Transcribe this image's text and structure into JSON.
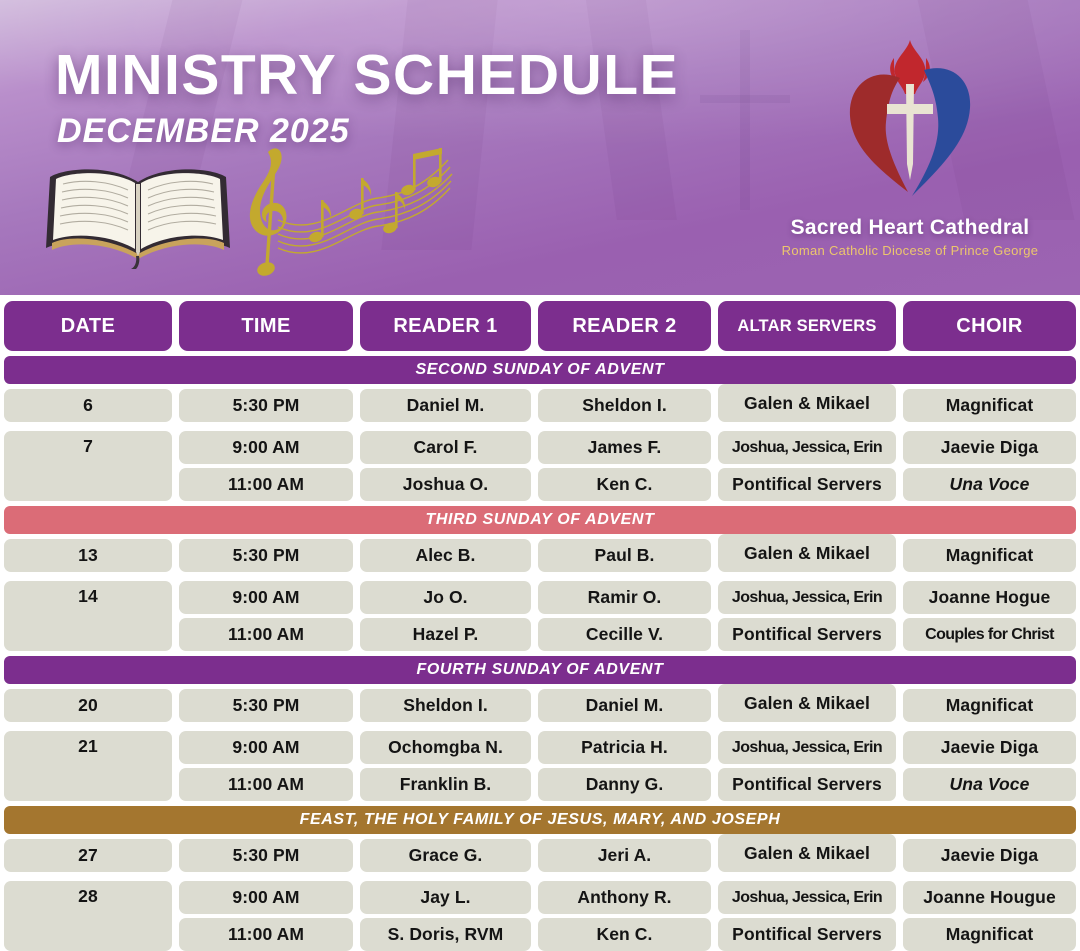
{
  "hero": {
    "title": "MINISTRY SCHEDULE",
    "subtitle": "DECEMBER 2025",
    "org_name": "Sacred Heart Cathedral",
    "org_tagline": "Roman Catholic Diocese of Prince George",
    "decorations": [
      "open-bible-icon",
      "music-notes-icon",
      "sacred-heart-logo"
    ]
  },
  "colors": {
    "header_purple": "#7c2e8e",
    "advent_purple": "#7c2e8e",
    "third_sunday_pink": "#db6c77",
    "feast_brown": "#a4762f",
    "cell_gray": "#dcdcd1",
    "gold": "#e5c25b"
  },
  "table": {
    "columns": [
      {
        "label": "DATE",
        "small": false
      },
      {
        "label": "TIME",
        "small": false
      },
      {
        "label": "READER 1",
        "small": false
      },
      {
        "label": "READER 2",
        "small": false
      },
      {
        "label": "ALTAR SERVERS",
        "small": true
      },
      {
        "label": "CHOIR",
        "small": false
      }
    ],
    "sections": [
      {
        "title": "SECOND SUNDAY OF ADVENT",
        "theme": "purple",
        "rows": [
          {
            "date": "6",
            "rowspan": 1,
            "time": "5:30 PM",
            "reader1": "Daniel M.",
            "reader2": "Sheldon I.",
            "servers": "Galen & Mikael",
            "choir": "Magnificat",
            "raised": true
          },
          {
            "date": "7",
            "rowspan": 2,
            "time": "9:00 AM",
            "reader1": "Carol F.",
            "reader2": "James F.",
            "servers": "Joshua, Jessica, Erin",
            "choir": "Jaevie Diga",
            "tight": true
          },
          {
            "date": null,
            "time": "11:00 AM",
            "reader1": "Joshua O.",
            "reader2": "Ken C.",
            "servers": "Pontifical Servers",
            "choir": "Una Voce",
            "choir_italic": true
          }
        ]
      },
      {
        "title": "THIRD SUNDAY OF ADVENT",
        "theme": "pink",
        "rows": [
          {
            "date": "13",
            "rowspan": 1,
            "time": "5:30 PM",
            "reader1": "Alec B.",
            "reader2": "Paul B.",
            "servers": "Galen & Mikael",
            "choir": "Magnificat",
            "raised": true
          },
          {
            "date": "14",
            "rowspan": 2,
            "time": "9:00 AM",
            "reader1": "Jo O.",
            "reader2": "Ramir O.",
            "servers": "Joshua, Jessica, Erin",
            "choir": "Joanne Hogue",
            "tight": true
          },
          {
            "date": null,
            "time": "11:00 AM",
            "reader1": "Hazel P.",
            "reader2": "Cecille V.",
            "servers": "Pontifical Servers",
            "choir": "Couples for Christ",
            "choir_tight": true
          }
        ]
      },
      {
        "title": "FOURTH SUNDAY OF ADVENT",
        "theme": "purple",
        "rows": [
          {
            "date": "20",
            "rowspan": 1,
            "time": "5:30 PM",
            "reader1": "Sheldon I.",
            "reader2": "Daniel M.",
            "servers": "Galen & Mikael",
            "choir": "Magnificat",
            "raised": true
          },
          {
            "date": "21",
            "rowspan": 2,
            "time": "9:00 AM",
            "reader1": "Ochomgba N.",
            "reader2": "Patricia H.",
            "servers": "Joshua, Jessica, Erin",
            "choir": "Jaevie Diga",
            "tight": true
          },
          {
            "date": null,
            "time": "11:00 AM",
            "reader1": "Franklin B.",
            "reader2": "Danny G.",
            "servers": "Pontifical Servers",
            "choir": "Una Voce",
            "choir_italic": true
          }
        ]
      },
      {
        "title": "FEAST, THE HOLY FAMILY OF JESUS, MARY, AND JOSEPH",
        "theme": "brown",
        "rows": [
          {
            "date": "27",
            "rowspan": 1,
            "time": "5:30 PM",
            "reader1": "Grace G.",
            "reader2": "Jeri A.",
            "servers": "Galen & Mikael",
            "choir": "Jaevie Diga",
            "raised": true
          },
          {
            "date": "28",
            "rowspan": 2,
            "time": "9:00 AM",
            "reader1": "Jay L.",
            "reader2": "Anthony R.",
            "servers": "Joshua, Jessica, Erin",
            "choir": "Joanne Hougue",
            "tight": true
          },
          {
            "date": null,
            "time": "11:00 AM",
            "reader1": "S. Doris, RVM",
            "reader2": "Ken C.",
            "servers": "Pontifical Servers",
            "choir": "Magnificat"
          }
        ]
      }
    ]
  }
}
